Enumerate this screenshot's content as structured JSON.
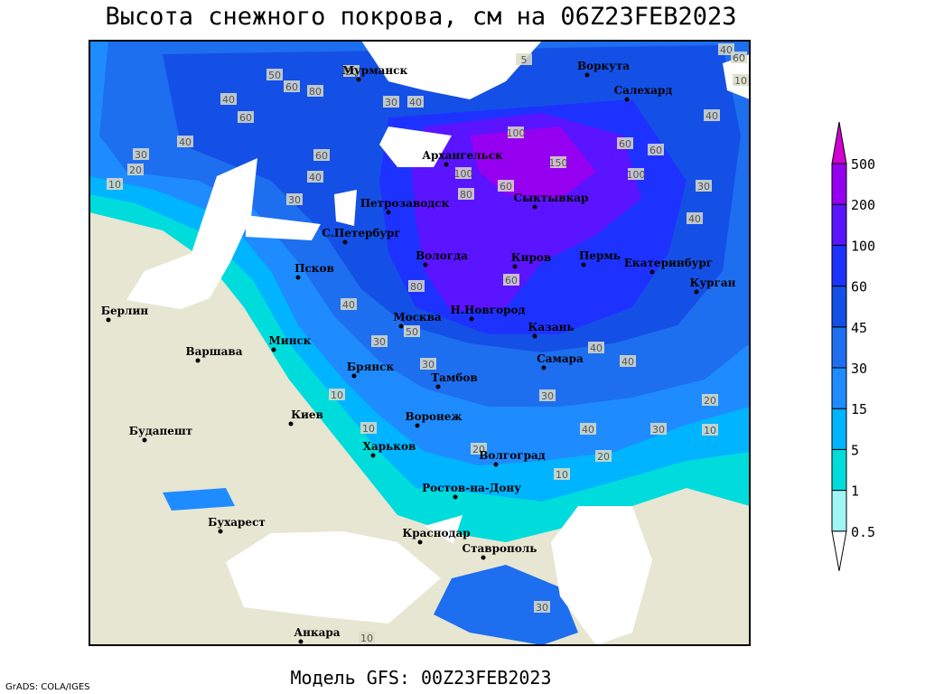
{
  "title": "Высота снежного покрова, см на 06Z23FEB2023",
  "footer": "Модель GFS: 00Z23FEB2023",
  "credit": "GrADS: COLA/IGES",
  "cities": [
    "Мурманск",
    "Воркута",
    "Салехард",
    "Архангельск",
    "Сыктывкар",
    "Петрозаводск",
    "С.Петербург",
    "Вологда",
    "Киров",
    "Пермь",
    "Екатеринбург",
    "Курган",
    "Псков",
    "Н.Новгород",
    "Москва",
    "Казань",
    "Берлин",
    "Варшава",
    "Минск",
    "Брянск",
    "Тамбов",
    "Самара",
    "Киев",
    "Воронеж",
    "Харьков",
    "Будапешт",
    "Волгоград",
    "Ростов-на-Дону",
    "Бухарест",
    "Краснодар",
    "Ставрополь",
    "Анкара"
  ],
  "contour_labels": [
    40,
    60,
    10,
    50,
    60,
    80,
    20,
    30,
    40,
    60,
    40,
    40,
    30,
    20,
    10,
    30,
    40,
    60,
    100,
    150,
    100,
    80,
    60,
    60,
    60,
    100,
    40,
    40,
    30,
    80,
    60,
    40,
    50,
    30,
    40,
    40,
    20,
    10,
    40,
    30,
    20,
    10,
    30,
    30,
    10,
    10,
    10,
    5,
    20,
    30
  ],
  "colorbar": {
    "levels": [
      0.5,
      1,
      5,
      15,
      30,
      45,
      60,
      100,
      200,
      500
    ],
    "colors": [
      "#ffffff",
      "#a0f5f5",
      "#00dcdc",
      "#00b4ff",
      "#1e8cff",
      "#1e6ef0",
      "#1450e6",
      "#1e32ff",
      "#5a14ff",
      "#9600f0",
      "#d200d2"
    ]
  }
}
